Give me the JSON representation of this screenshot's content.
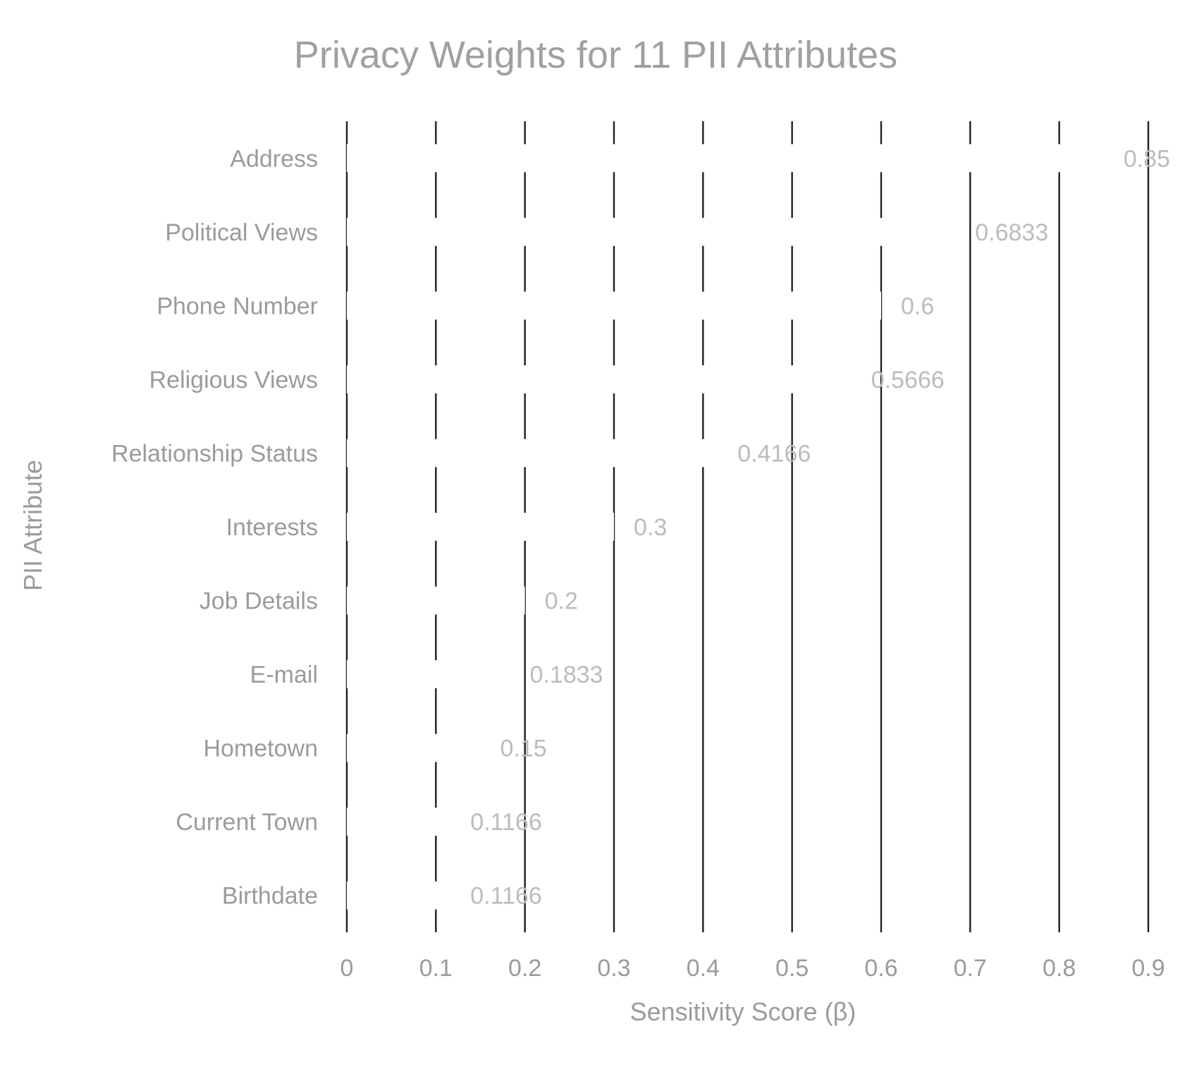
{
  "chart_data": {
    "type": "bar",
    "orientation": "horizontal",
    "title": "Privacy Weights for 11 PII Attributes",
    "xlabel": "Sensitivity Score (β)",
    "ylabel": "PII Attribute",
    "xlim": [
      0,
      0.9
    ],
    "x_ticks": [
      "0",
      "0.1",
      "0.2",
      "0.3",
      "0.4",
      "0.5",
      "0.6",
      "0.7",
      "0.8",
      "0.9"
    ],
    "grid": "vertical",
    "categories": [
      "Address",
      "Political Views",
      "Phone Number",
      "Religious Views",
      "Relationship Status",
      "Interests",
      "Job Details",
      "E-mail",
      "Hometown",
      "Current Town",
      "Birthdate"
    ],
    "values": [
      0.85,
      0.6833,
      0.6,
      0.5666,
      0.4166,
      0.3,
      0.2,
      0.1833,
      0.15,
      0.1166,
      0.1166
    ],
    "data_labels": [
      "0.85",
      "0.6833",
      "0.6",
      "0.5666",
      "0.4166",
      "0.3",
      "0.2",
      "0.1833",
      "0.15",
      "0.1166",
      "0.1166"
    ],
    "colors": {
      "bar": "#ffffff",
      "gridline": "#1f1f1f",
      "title": "#a0a0a0",
      "axis_text": "#9b9b9b",
      "data_label": "#bcbcbc"
    }
  }
}
